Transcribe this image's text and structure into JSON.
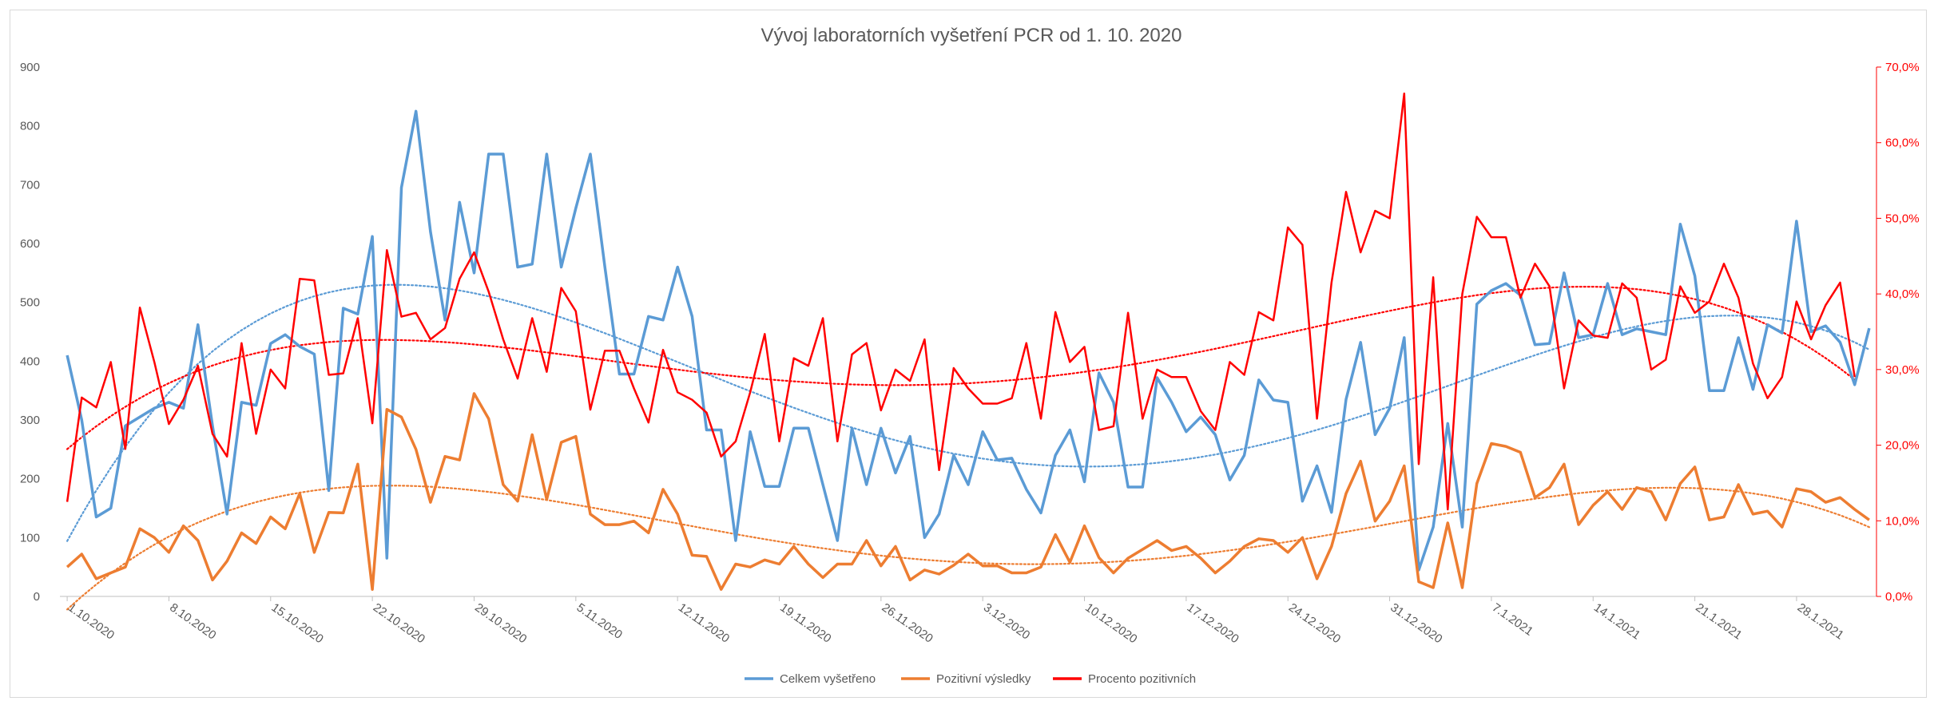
{
  "chart_data": {
    "type": "line",
    "title": "Vývoj laboratorních vyšetření PCR od 1. 10. 2020",
    "x_tick_labels": [
      "1.10.2020",
      "8.10.2020",
      "15.10.2020",
      "22.10.2020",
      "29.10.2020",
      "5.11.2020",
      "12.11.2020",
      "19.11.2020",
      "26.11.2020",
      "3.12.2020",
      "10.12.2020",
      "17.12.2020",
      "24.12.2020",
      "31.12.2020",
      "7.1.2021",
      "14.1.2021",
      "21.1.2021",
      "28.1.2021"
    ],
    "y_left_ticks": [
      "0",
      "100",
      "200",
      "300",
      "400",
      "500",
      "600",
      "700",
      "800",
      "900"
    ],
    "y_right_ticks": [
      "0,0%",
      "10,0%",
      "20,0%",
      "30,0%",
      "40,0%",
      "50,0%",
      "60,0%",
      "70,0%"
    ],
    "ylim_left": [
      0,
      900
    ],
    "ylim_right": [
      0,
      70
    ],
    "grid": false,
    "legend_position": "bottom",
    "series": [
      {
        "name": "Celkem vyšetřeno",
        "color": "#5b9bd5",
        "axis": "left",
        "values": [
          410,
          300,
          135,
          150,
          290,
          305,
          320,
          330,
          320,
          462,
          290,
          140,
          330,
          325,
          430,
          445,
          425,
          412,
          180,
          490,
          480,
          612,
          65,
          695,
          825,
          620,
          470,
          670,
          550,
          752,
          752,
          560,
          565,
          752,
          560,
          660,
          752,
          560,
          378,
          378,
          476,
          470,
          560,
          476,
          283,
          283,
          95,
          280,
          187,
          187,
          286,
          286,
          190,
          95,
          286,
          190,
          286,
          210,
          272,
          100,
          140,
          240,
          190,
          280,
          232,
          235,
          182,
          142,
          240,
          283,
          195,
          380,
          330,
          186,
          186,
          372,
          330,
          280,
          305,
          275,
          198,
          240,
          368,
          334,
          330,
          162,
          222,
          143,
          335,
          432,
          275,
          320,
          440,
          45,
          118,
          294,
          118,
          497,
          520,
          532,
          512,
          428,
          430,
          550,
          440,
          445,
          532,
          445,
          455,
          450,
          445,
          633,
          545,
          350,
          350,
          440,
          352,
          462,
          448,
          638,
          450,
          460,
          432,
          360,
          456
        ]
      },
      {
        "name": "Pozitivní výsledky",
        "color": "#ed7d31",
        "axis": "left",
        "values": [
          50,
          72,
          30,
          40,
          50,
          115,
          100,
          75,
          120,
          95,
          28,
          60,
          108,
          90,
          135,
          115,
          175,
          75,
          143,
          142,
          225,
          12,
          318,
          305,
          250,
          160,
          238,
          232,
          345,
          302,
          190,
          162,
          275,
          165,
          262,
          272,
          140,
          122,
          122,
          128,
          108,
          182,
          140,
          70,
          68,
          12,
          55,
          50,
          62,
          55,
          85,
          55,
          32,
          55,
          55,
          95,
          52,
          85,
          28,
          45,
          38,
          53,
          72,
          52,
          52,
          40,
          40,
          50,
          105,
          58,
          120,
          66,
          40,
          65,
          80,
          95,
          78,
          85,
          65,
          40,
          60,
          85,
          98,
          95,
          75,
          100,
          30,
          85,
          175,
          230,
          128,
          162,
          222,
          25,
          15,
          125,
          15,
          192,
          260,
          255,
          245,
          168,
          185,
          225,
          122,
          155,
          178,
          148,
          185,
          178,
          130,
          192,
          220,
          130,
          135,
          190,
          140,
          145,
          118,
          183,
          178,
          160,
          168,
          148,
          130
        ]
      },
      {
        "name": "Procento pozitivních",
        "color": "#ff0000",
        "axis": "right",
        "values": [
          12.5,
          26.3,
          25.0,
          31.0,
          19.5,
          38.2,
          31.0,
          22.8,
          26.0,
          30.5,
          21.5,
          18.5,
          33.5,
          21.5,
          30.0,
          27.5,
          42.0,
          41.8,
          29.3,
          29.5,
          36.8,
          22.9,
          45.8,
          37.0,
          37.5,
          34.0,
          35.5,
          42.0,
          45.5,
          40.3,
          34.0,
          28.8,
          36.8,
          29.7,
          40.8,
          37.7,
          24.7,
          32.5,
          32.5,
          27.5,
          23.0,
          32.6,
          27.0,
          26.0,
          24.3,
          18.5,
          20.5,
          27.0,
          34.7,
          20.5,
          31.5,
          30.5,
          36.8,
          20.5,
          32.0,
          33.5,
          24.6,
          30.0,
          28.5,
          34.0,
          16.7,
          30.2,
          27.5,
          25.5,
          25.5,
          26.2,
          33.5,
          23.5,
          37.6,
          31.0,
          33.0,
          22.0,
          22.5,
          37.5,
          23.5,
          30.0,
          29.0,
          29.0,
          24.5,
          22.0,
          31.0,
          29.3,
          37.6,
          36.5,
          48.8,
          46.5,
          23.5,
          41.5,
          53.5,
          45.5,
          51.0,
          50.0,
          66.5,
          17.5,
          42.2,
          11.5,
          40.0,
          50.2,
          47.5,
          47.5,
          39.5,
          44.0,
          41.0,
          27.5,
          36.5,
          34.5,
          34.2,
          41.4,
          39.5,
          30.0,
          31.3,
          41.0,
          37.5,
          39.0,
          44.0,
          39.5,
          30.8,
          26.2,
          29.0,
          39.0,
          34.0,
          38.5,
          41.5,
          29.0
        ]
      }
    ],
    "trendlines": [
      {
        "name": "Celkem vyšetřeno",
        "color": "#5b9bd5",
        "style": "dotted",
        "type": "polynomial"
      },
      {
        "name": "Pozitivní výsledky",
        "color": "#ed7d31",
        "style": "dotted",
        "type": "polynomial"
      },
      {
        "name": "Procento pozitivních",
        "color": "#ff0000",
        "style": "dotted",
        "type": "polynomial"
      }
    ]
  }
}
